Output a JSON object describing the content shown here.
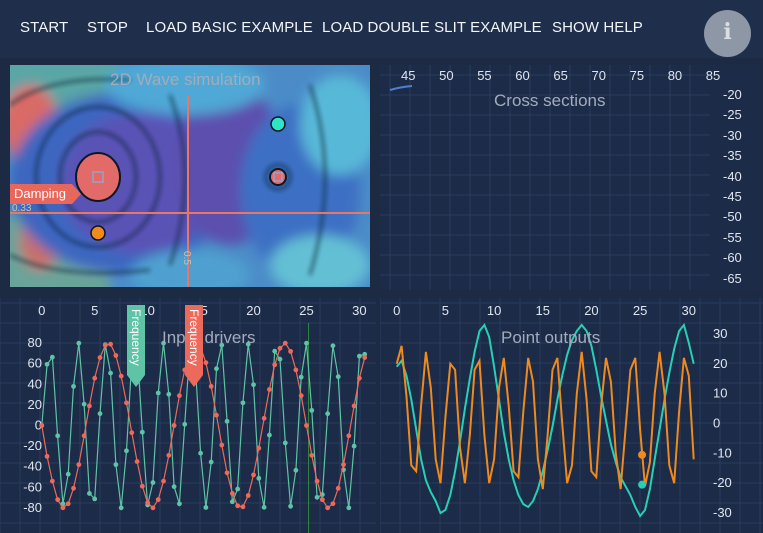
{
  "toolbar": {
    "start": "START",
    "stop": "STOP",
    "load_basic": "LOAD BASIC EXAMPLE",
    "load_double_slit": "LOAD DOUBLE SLIT EXAMPLE",
    "show_help": "SHOW HELP",
    "info_icon": "info-icon",
    "info_glyph": "i"
  },
  "wave_panel": {
    "title": "2D Wave simulation",
    "damping_label": "Damping",
    "crosshair_h_readout": "0.33",
    "crosshair_v_readout": "0.5",
    "colors": {
      "crosshair": "#e8776a",
      "probe_a": "#2ee6c7",
      "probe_b": "#f08a1c",
      "damping_marker": "#e8675d"
    }
  },
  "cross_panel": {
    "title": "Cross sections",
    "x_ticks": [
      "45",
      "50",
      "55",
      "60",
      "65",
      "70",
      "75",
      "80",
      "85"
    ],
    "y_ticks": [
      "-20",
      "-25",
      "-30",
      "-35",
      "-40",
      "-45",
      "-50",
      "-55",
      "-60",
      "-65"
    ]
  },
  "inputs_panel": {
    "title": "Input drivers",
    "frequency_label_1": "Frequency",
    "frequency_label_2": "Frequency",
    "colors": {
      "teal": "#5fc3a6",
      "coral": "#ec6a5c",
      "cursor": "#2f8a3c"
    }
  },
  "outputs_panel": {
    "title": "Point outputs",
    "colors": {
      "teal": "#27d0b4",
      "orange": "#ee8a1f"
    }
  },
  "chart_data": [
    {
      "type": "line",
      "title": "Input drivers",
      "x": [
        0,
        0.5,
        1,
        1.5,
        2,
        2.5,
        3,
        3.5,
        4,
        4.5,
        5,
        5.5,
        6,
        6.5,
        7,
        7.5,
        8,
        8.5,
        9,
        9.5,
        10,
        10.5,
        11,
        11.5,
        12,
        12.5,
        13,
        13.5,
        14,
        14.5,
        15,
        15.5,
        16,
        16.5,
        17,
        17.5,
        18,
        18.5,
        19,
        19.5,
        20,
        20.5,
        21,
        21.5,
        22,
        22.5,
        23,
        23.5,
        24,
        24.5,
        25,
        25.5,
        26,
        26.5,
        27,
        27.5,
        28,
        28.5,
        29,
        29.5,
        30,
        30.5
      ],
      "series": [
        {
          "values": [
            0,
            59.4,
            66.4,
            -10.0,
            -76.1,
            -47.3,
            38.0,
            80.0,
            20.7,
            -66.0,
            -71.3,
            11.5,
            78.5,
            50.9,
            -38.0,
            -80.0,
            -24.6,
            63.5,
            73.7,
            -6.5,
            -77.2,
            -55.4,
            31.6,
            80.0,
            30.3,
            -59.4,
            -76.1,
            1.2,
            75.8,
            58.7,
            -26.9,
            -79.6,
            -35.5,
            55.2,
            78.1,
            4.1,
            -74.1,
            -61.7,
            22.0,
            79.0,
            39.6,
            -51.3,
            -79.5,
            -9.3,
            72.2,
            64.4,
            -16.9,
            -78.5,
            -43.5,
            47.0,
            80.0,
            14.7,
            -69.8,
            -67.1,
            11.5,
            77.5,
            47.4,
            -43.0,
            -80.0,
            -20.0,
            67.4,
            69.2
          ]
        },
        {
          "values": [
            0,
            -30,
            -54,
            -72,
            -80,
            -76,
            -61,
            -38,
            -10,
            19,
            46,
            66,
            78,
            79,
            68,
            48,
            22,
            -7,
            -35,
            -59,
            -75,
            -80,
            -72,
            -54,
            -29,
            0,
            29,
            54,
            72,
            80,
            76,
            61,
            38,
            10,
            -19,
            -46,
            -66,
            -78,
            -79,
            -68,
            -48,
            -22,
            7,
            35,
            59,
            75,
            80,
            72,
            54,
            29,
            0,
            -29,
            -54,
            -72,
            -80,
            -76,
            -61,
            -38,
            -10,
            19,
            46,
            66
          ]
        }
      ],
      "xlim": [
        -3,
        31
      ],
      "ylim": [
        -85,
        85
      ],
      "x_ticks": [
        0,
        5,
        10,
        15,
        20,
        25,
        30
      ],
      "y_ticks": [
        80,
        60,
        40,
        20,
        0,
        -20,
        -40,
        -60,
        -80
      ],
      "frequency_markers_x": [
        8.5,
        14.5
      ],
      "cursor_x": 25.2,
      "grid": true
    },
    {
      "type": "line",
      "title": "Point outputs",
      "x": [
        0,
        0.5,
        1,
        1.5,
        2,
        2.5,
        3,
        3.5,
        4,
        4.5,
        5,
        5.5,
        6,
        6.5,
        7,
        7.5,
        8,
        8.5,
        9,
        9.5,
        10,
        10.5,
        11,
        11.5,
        12,
        12.5,
        13,
        13.5,
        14,
        14.5,
        15,
        15.5,
        16,
        16.5,
        17,
        17.5,
        18,
        18.5,
        19,
        19.5,
        20,
        20.5,
        21,
        21.5,
        22,
        22.5,
        23,
        23.5,
        24,
        24.5,
        25,
        25.5,
        26,
        26.5,
        27,
        27.5,
        28,
        28.5,
        29,
        29.5,
        30,
        30.5
      ],
      "series": [
        {
          "values": [
            19,
            21,
            16,
            8,
            -2,
            -12,
            -19,
            -23,
            -26,
            -30,
            -29,
            -24,
            -16,
            -6,
            5,
            15,
            24,
            31,
            33,
            29,
            19,
            8,
            -3,
            -12,
            -19,
            -24,
            -27,
            -28,
            -26,
            -22,
            -16,
            -9,
            -1,
            8,
            16,
            23,
            28,
            31,
            33,
            31,
            26,
            18,
            9,
            1,
            -7,
            -13,
            -18,
            -21,
            -24,
            -28,
            -31,
            -29,
            -22,
            -12,
            -2,
            8,
            17,
            25,
            31,
            33,
            27,
            20
          ]
        },
        {
          "values": [
            20,
            26,
            9,
            -14,
            -16,
            6,
            24,
            12,
            -12,
            -20,
            2,
            20,
            18,
            -8,
            -20,
            -4,
            18,
            21,
            -4,
            -20,
            -12,
            12,
            22,
            6,
            -16,
            -18,
            4,
            22,
            14,
            -12,
            -22,
            -4,
            18,
            22,
            0,
            -20,
            -14,
            10,
            24,
            8,
            -16,
            -18,
            6,
            22,
            14,
            -10,
            -22,
            -2,
            18,
            22,
            -2,
            -21,
            -13,
            10,
            24,
            10,
            -14,
            -20,
            4,
            22,
            16,
            -12
          ]
        }
      ],
      "xlim": [
        -1,
        33
      ],
      "ylim": [
        -31,
        31
      ],
      "x_ticks": [
        0,
        5,
        10,
        15,
        20,
        25,
        30
      ],
      "y_ticks": [
        30,
        20,
        10,
        0,
        -10,
        -20,
        -30
      ],
      "highlight_points": [
        {
          "x": 25.2,
          "y": -20.5
        },
        {
          "x": 25.2,
          "y": -10.5
        }
      ],
      "grid": true
    }
  ]
}
